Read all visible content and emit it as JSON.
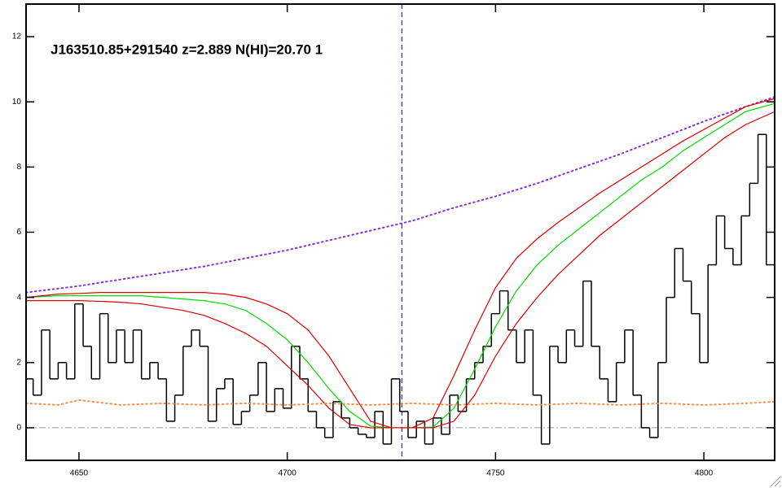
{
  "chart_data": {
    "type": "line",
    "title": "J163510.85+291540 z=2.889 N(HI)=20.70 1",
    "xlim": [
      4637.3,
      4817
    ],
    "ylim": [
      -1,
      13
    ],
    "xticks": [
      4650,
      4700,
      4750,
      4800
    ],
    "yticks": [
      0,
      2,
      4,
      6,
      8,
      10,
      12
    ],
    "hline": 0,
    "vline": 4727.5,
    "series": [
      {
        "style": "step",
        "color": "#000000",
        "x": [
          4638,
          4640,
          4642,
          4644,
          4646,
          4648,
          4650,
          4652,
          4654,
          4656,
          4658,
          4660,
          4662,
          4664,
          4666,
          4668,
          4670,
          4672,
          4674,
          4676,
          4678,
          4680,
          4682,
          4684,
          4686,
          4688,
          4690,
          4692,
          4694,
          4696,
          4698,
          4700,
          4702,
          4704,
          4706,
          4708,
          4710,
          4712,
          4714,
          4716,
          4718,
          4720,
          4722,
          4724,
          4726,
          4728,
          4730,
          4732,
          4734,
          4736,
          4738,
          4740,
          4742,
          4744,
          4746,
          4748,
          4750,
          4752,
          4754,
          4756,
          4758,
          4760,
          4762,
          4764,
          4766,
          4768,
          4770,
          4772,
          4774,
          4776,
          4778,
          4780,
          4782,
          4784,
          4786,
          4788,
          4790,
          4792,
          4794,
          4796,
          4798,
          4800,
          4802,
          4804,
          4806,
          4808,
          4810,
          4812,
          4814,
          4816
        ],
        "values": [
          1.5,
          1.0,
          3.0,
          1.5,
          2.0,
          1.5,
          3.8,
          2.5,
          1.5,
          3.5,
          2.0,
          3.0,
          2.0,
          3.0,
          1.5,
          2.0,
          1.5,
          0.2,
          1.0,
          2.5,
          3.0,
          2.5,
          0.2,
          1.2,
          1.5,
          0.1,
          0.5,
          1.0,
          2.0,
          0.5,
          1.2,
          0.6,
          2.5,
          1.5,
          0.5,
          0.0,
          -0.3,
          0.8,
          0.3,
          0.0,
          -0.2,
          -0.3,
          0.5,
          -0.5,
          1.5,
          0.5,
          -0.3,
          0.2,
          -0.5,
          0.3,
          -0.2,
          1.0,
          0.5,
          1.5,
          2.0,
          2.5,
          3.5,
          4.2,
          3.0,
          2.0,
          3.0,
          1.0,
          -0.5,
          2.5,
          2.0,
          3.0,
          2.5,
          4.5,
          2.5,
          1.5,
          0.8,
          2.0,
          3.0,
          1.0,
          0.0,
          -0.3,
          2.0,
          4.0,
          5.5,
          4.5,
          3.5,
          2.0,
          5.0,
          6.5,
          5.5,
          5.0,
          6.5,
          7.5,
          9.0,
          5.0
        ]
      },
      {
        "style": "dotted",
        "color": "#8a2be2",
        "x": [
          4637.3,
          4650,
          4660,
          4670,
          4680,
          4690,
          4700,
          4710,
          4720,
          4730,
          4740,
          4750,
          4760,
          4770,
          4780,
          4790,
          4800,
          4810,
          4817
        ],
        "values": [
          4.15,
          4.35,
          4.55,
          4.75,
          4.95,
          5.2,
          5.45,
          5.75,
          6.05,
          6.35,
          6.75,
          7.1,
          7.5,
          7.95,
          8.4,
          8.9,
          9.4,
          9.85,
          10.15
        ]
      },
      {
        "style": "solid",
        "color": "#00dd00",
        "x": [
          4637.3,
          4645,
          4650,
          4655,
          4660,
          4665,
          4670,
          4675,
          4680,
          4685,
          4690,
          4695,
          4700,
          4705,
          4710,
          4715,
          4720,
          4725,
          4730,
          4735,
          4740,
          4745,
          4750,
          4755,
          4760,
          4765,
          4770,
          4775,
          4780,
          4785,
          4790,
          4795,
          4800,
          4805,
          4810,
          4817
        ],
        "values": [
          4.0,
          4.05,
          4.05,
          4.05,
          4.05,
          4.05,
          4.0,
          3.95,
          3.9,
          3.8,
          3.6,
          3.2,
          2.7,
          2.0,
          1.2,
          0.5,
          0.05,
          0.0,
          0.0,
          0.02,
          0.6,
          1.8,
          3.1,
          4.2,
          5.0,
          5.6,
          6.1,
          6.6,
          7.1,
          7.6,
          8.0,
          8.5,
          8.9,
          9.3,
          9.7,
          9.95
        ]
      },
      {
        "style": "solid",
        "color": "#dd0000",
        "x": [
          4637.3,
          4645,
          4650,
          4655,
          4660,
          4665,
          4670,
          4675,
          4680,
          4685,
          4690,
          4695,
          4700,
          4705,
          4710,
          4715,
          4720,
          4725,
          4730,
          4735,
          4740,
          4745,
          4750,
          4755,
          4760,
          4765,
          4770,
          4775,
          4780,
          4785,
          4790,
          4795,
          4800,
          4805,
          4810,
          4817
        ],
        "values": [
          4.0,
          4.1,
          4.12,
          4.15,
          4.15,
          4.15,
          4.15,
          4.15,
          4.15,
          4.1,
          4.0,
          3.8,
          3.5,
          3.0,
          2.2,
          1.2,
          0.2,
          0.0,
          0.0,
          0.3,
          1.6,
          3.0,
          4.3,
          5.2,
          5.8,
          6.3,
          6.75,
          7.2,
          7.6,
          8.0,
          8.4,
          8.8,
          9.15,
          9.5,
          9.85,
          10.1
        ]
      },
      {
        "style": "solid",
        "color": "#dd0000",
        "x": [
          4637.3,
          4645,
          4650,
          4655,
          4660,
          4665,
          4670,
          4675,
          4680,
          4685,
          4690,
          4695,
          4700,
          4705,
          4710,
          4715,
          4720,
          4725,
          4730,
          4735,
          4740,
          4745,
          4750,
          4755,
          4760,
          4765,
          4770,
          4775,
          4780,
          4785,
          4790,
          4795,
          4800,
          4805,
          4810,
          4817
        ],
        "values": [
          3.9,
          3.9,
          3.9,
          3.88,
          3.85,
          3.8,
          3.7,
          3.6,
          3.45,
          3.2,
          2.9,
          2.5,
          1.9,
          1.3,
          0.6,
          0.1,
          0.0,
          0.0,
          0.0,
          0.0,
          0.2,
          1.0,
          2.2,
          3.2,
          4.0,
          4.7,
          5.3,
          5.9,
          6.4,
          6.9,
          7.4,
          7.9,
          8.4,
          8.9,
          9.3,
          9.7
        ]
      },
      {
        "style": "dotted",
        "color": "#ff8c40",
        "x": [
          4637.3,
          4645,
          4650,
          4660,
          4670,
          4680,
          4690,
          4700,
          4710,
          4720,
          4730,
          4740,
          4750,
          4760,
          4770,
          4780,
          4790,
          4800,
          4810,
          4817
        ],
        "values": [
          0.75,
          0.7,
          0.85,
          0.7,
          0.75,
          0.7,
          0.75,
          0.7,
          0.75,
          0.7,
          0.75,
          0.7,
          0.75,
          0.7,
          0.75,
          0.7,
          0.75,
          0.7,
          0.75,
          0.8
        ]
      }
    ]
  }
}
